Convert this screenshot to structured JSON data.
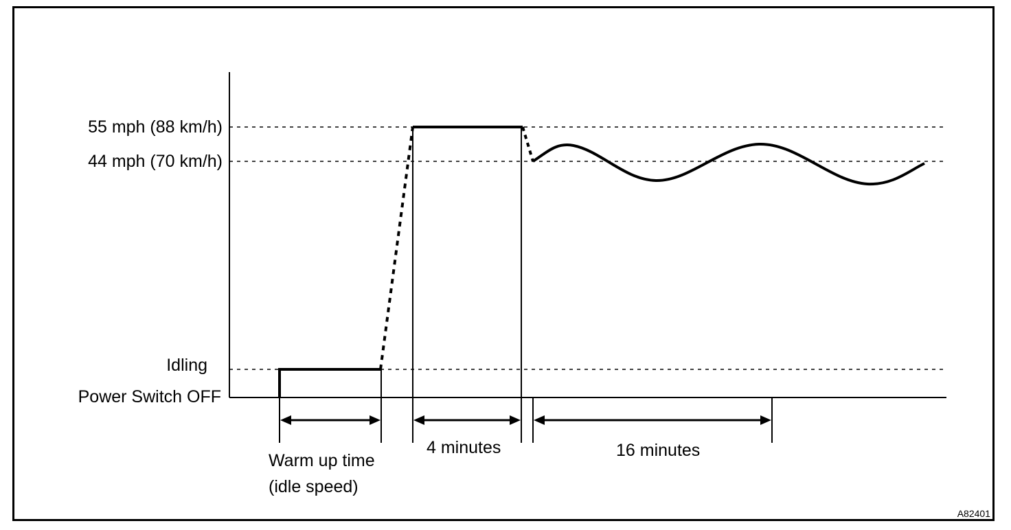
{
  "diagram": {
    "y_levels": {
      "speed_55": "55 mph (88 km/h)",
      "speed_44": "44 mph (70 km/h)",
      "idling": "Idling",
      "power_off": "Power Switch OFF"
    },
    "intervals": {
      "warm_up_line1": "Warm up time",
      "warm_up_line2": "(idle speed)",
      "four_min": "4 minutes",
      "sixteen_min": "16 minutes"
    },
    "figure_code": "A82401"
  }
}
